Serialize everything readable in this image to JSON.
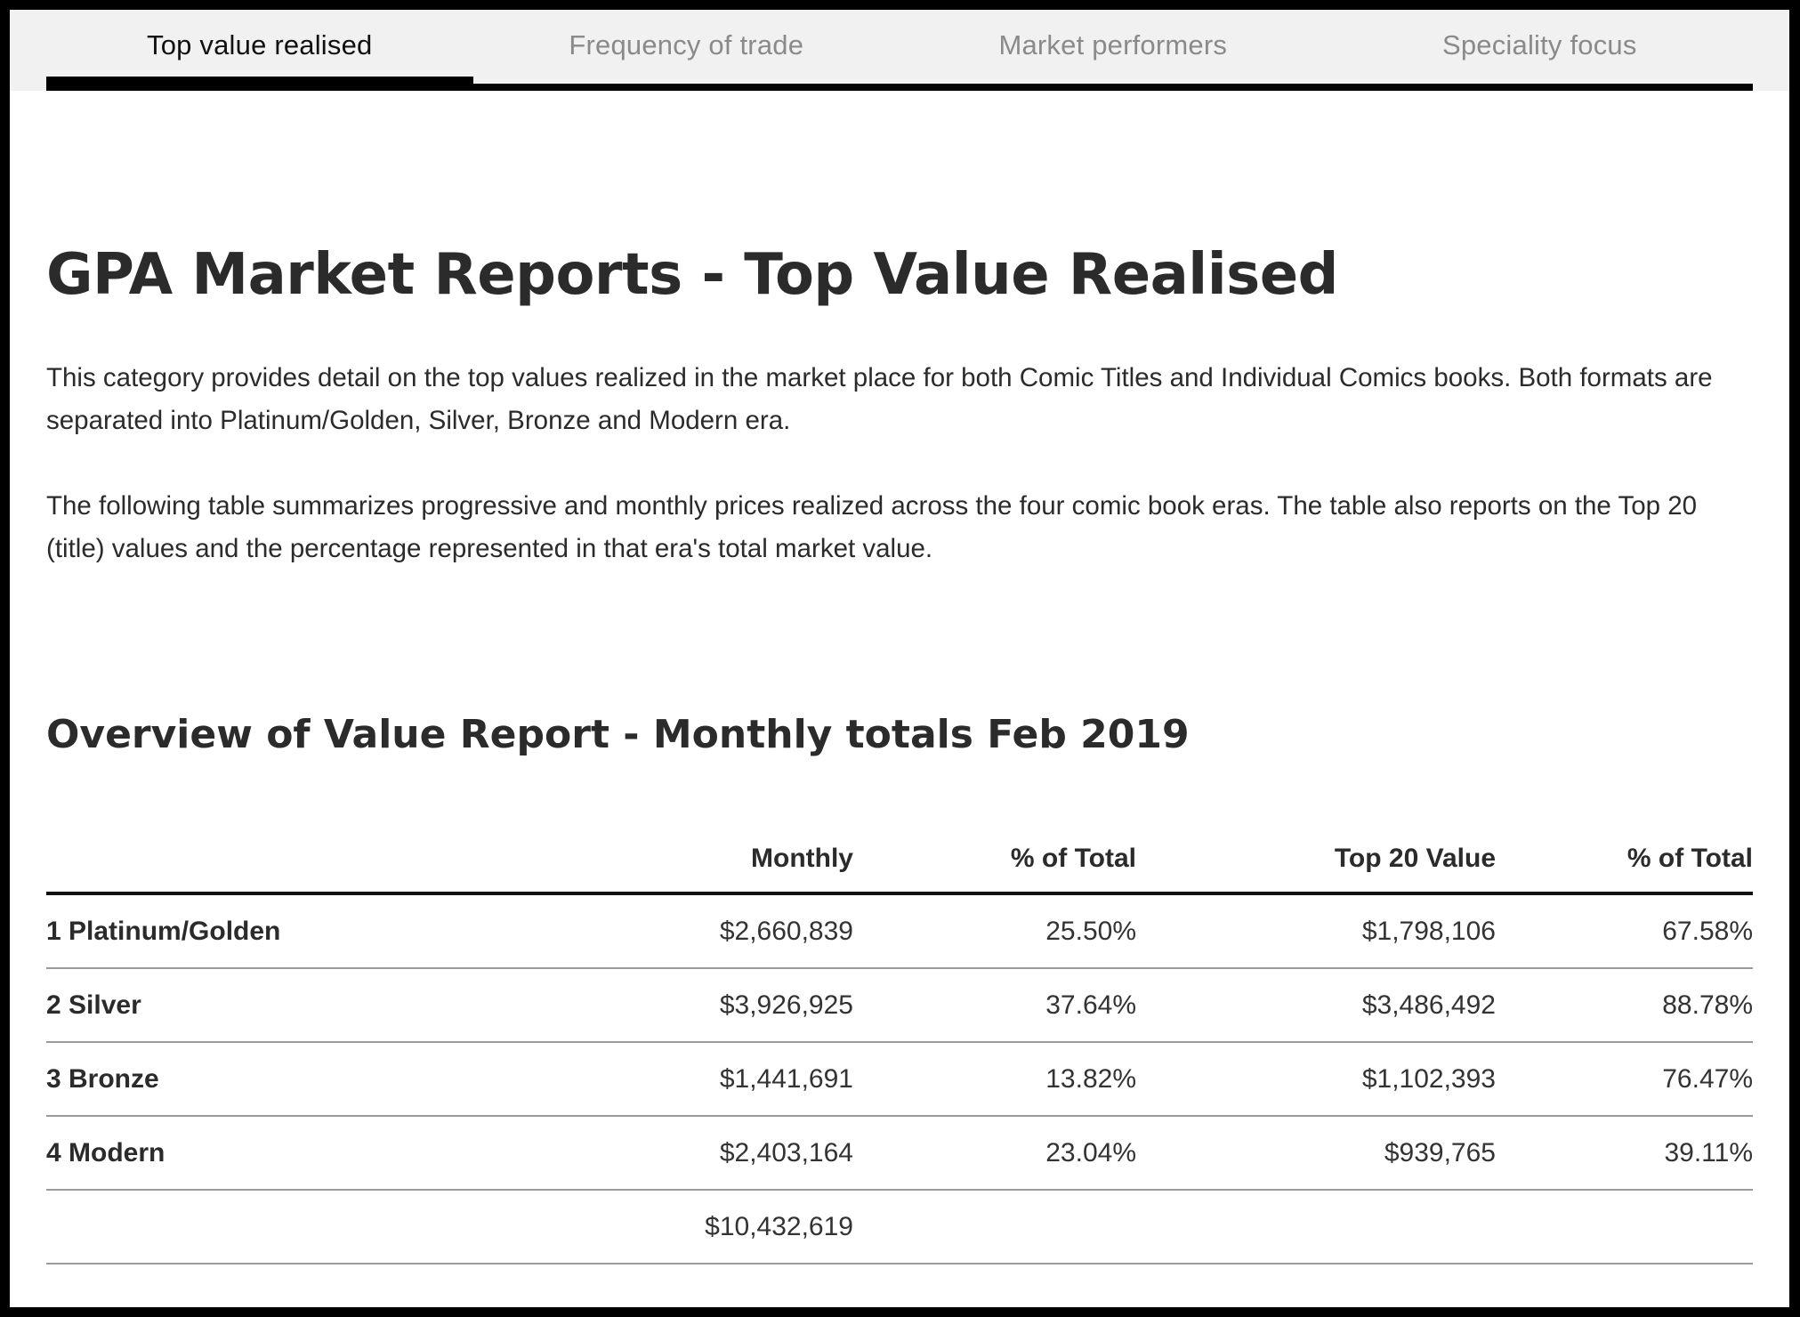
{
  "tabs": [
    {
      "label": "Top value realised",
      "active": true
    },
    {
      "label": "Frequency of trade",
      "active": false
    },
    {
      "label": "Market performers",
      "active": false
    },
    {
      "label": "Speciality focus",
      "active": false
    }
  ],
  "page": {
    "title": "GPA Market Reports - Top Value Realised",
    "intro_1": "This category provides detail on the top values realized in the market place for both Comic Titles and Individual Comics books.   Both formats are separated into Platinum/Golden, Silver, Bronze and Modern era.",
    "intro_2": "The following table summarizes progressive and monthly prices realized across the four comic book eras. The table also reports on the Top 20 (title) values and the percentage represented in that era's total market value."
  },
  "report": {
    "heading": "Overview of Value Report - Monthly totals Feb 2019",
    "columns": [
      "",
      "Monthly",
      "% of Total",
      "Top 20 Value",
      "% of Total"
    ],
    "rows": [
      {
        "era": "1 Platinum/Golden",
        "monthly": "$2,660,839",
        "pct_total": "25.50%",
        "top20": "$1,798,106",
        "top20_pct": "67.58%"
      },
      {
        "era": "2 Silver",
        "monthly": "$3,926,925",
        "pct_total": "37.64%",
        "top20": "$3,486,492",
        "top20_pct": "88.78%"
      },
      {
        "era": "3 Bronze",
        "monthly": "$1,441,691",
        "pct_total": "13.82%",
        "top20": "$1,102,393",
        "top20_pct": "76.47%"
      },
      {
        "era": "4 Modern",
        "monthly": "$2,403,164",
        "pct_total": "23.04%",
        "top20": "$939,765",
        "top20_pct": "39.11%"
      }
    ],
    "total": {
      "era": "",
      "monthly": "$10,432,619",
      "pct_total": "",
      "top20": "",
      "top20_pct": ""
    }
  }
}
